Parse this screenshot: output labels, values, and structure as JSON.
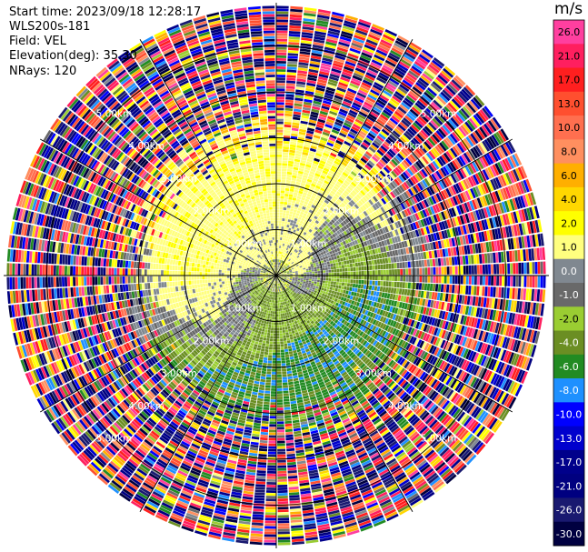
{
  "header": {
    "start_time": "Start time: 2023/09/18 12:28:17",
    "instrument": "WLS200s-181",
    "field": "Field: VEL",
    "elevation": "Elevation(deg): 35.30",
    "nrays": "NRays: 120"
  },
  "colorbar": {
    "unit": "m/s",
    "bins": [
      {
        "label": "26.0",
        "color": "#ff3f9f"
      },
      {
        "label": "21.0",
        "color": "#ff1f5f"
      },
      {
        "label": "17.0",
        "color": "#ff1f1f"
      },
      {
        "label": "13.0",
        "color": "#ff4f2f"
      },
      {
        "label": "10.0",
        "color": "#ff6f4f"
      },
      {
        "label": "8.0",
        "color": "#ff8f5f"
      },
      {
        "label": "6.0",
        "color": "#ffaf00"
      },
      {
        "label": "4.0",
        "color": "#ffd700"
      },
      {
        "label": "2.0",
        "color": "#ffff00"
      },
      {
        "label": "1.0",
        "color": "#ffff7f"
      },
      {
        "label": "0.0",
        "color": "#808890"
      },
      {
        "label": "-1.0",
        "color": "#696969"
      },
      {
        "label": "-2.0",
        "color": "#9acd32"
      },
      {
        "label": "-4.0",
        "color": "#6b8e23"
      },
      {
        "label": "-6.0",
        "color": "#228b22"
      },
      {
        "label": "-8.0",
        "color": "#1e90ff"
      },
      {
        "label": "-10.0",
        "color": "#0000ff"
      },
      {
        "label": "-13.0",
        "color": "#0000cd"
      },
      {
        "label": "-17.0",
        "color": "#00008b"
      },
      {
        "label": "-21.0",
        "color": "#000080"
      },
      {
        "label": "-26.0",
        "color": "#191970"
      },
      {
        "label": "-30.0",
        "color": "#000040"
      }
    ]
  },
  "chart_data": {
    "type": "heatmap",
    "projection": "polar PPI",
    "field": "VEL",
    "units": "m/s",
    "n_rays": 120,
    "range_rings_km": [
      1.0,
      2.0,
      3.0,
      4.0,
      5.0
    ],
    "ring_labels": [
      "1.00km",
      "2.00km",
      "3.00km",
      "4.00km",
      "5.00km"
    ],
    "azimuth_lines_deg": [
      0,
      30,
      60,
      90,
      120,
      150,
      180,
      210,
      240,
      270,
      300,
      330
    ],
    "max_range_km": 5.9,
    "regions": [
      {
        "range_km": [
          0.0,
          0.8
        ],
        "description_values": [
          -2.0,
          2.0
        ]
      },
      {
        "range_km": [
          0.8,
          3.0
        ],
        "north_sector": "yellow 1-2 m/s",
        "south_sector": "green -2 to -6 m/s"
      },
      {
        "range_km": [
          3.0,
          5.9
        ],
        "description_values": [
          -30.0,
          26.0
        ],
        "note": "noise / random velocities"
      }
    ]
  }
}
